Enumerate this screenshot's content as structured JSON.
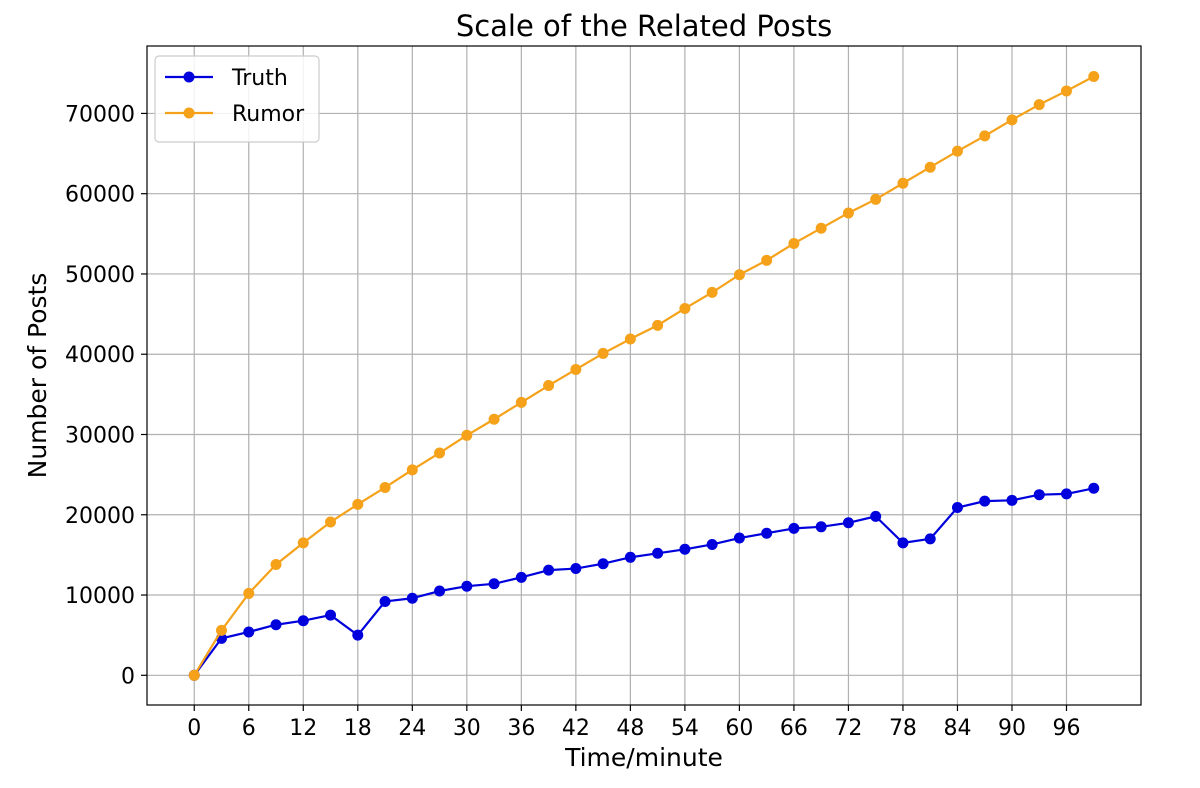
{
  "chart_data": {
    "type": "line",
    "title": "Scale of the Related Posts",
    "xlabel": "Time/minute",
    "ylabel": "Number of Posts",
    "xlim": [
      -5.2,
      104.2
    ],
    "ylim": [
      -3700,
      78400
    ],
    "xticks": [
      0,
      6,
      12,
      18,
      24,
      30,
      36,
      42,
      48,
      54,
      60,
      66,
      72,
      78,
      84,
      90,
      96
    ],
    "yticks": [
      0,
      10000,
      20000,
      30000,
      40000,
      50000,
      60000,
      70000
    ],
    "grid": true,
    "legend_position": "top-left",
    "x": [
      0,
      3,
      6,
      9,
      12,
      15,
      18,
      21,
      24,
      27,
      30,
      33,
      36,
      39,
      42,
      45,
      48,
      51,
      54,
      57,
      60,
      63,
      66,
      69,
      72,
      75,
      78,
      81,
      84,
      87,
      90,
      93,
      96,
      99
    ],
    "series": [
      {
        "name": "Truth",
        "color": "#0000dd",
        "values": [
          0,
          4600,
          5400,
          6300,
          6800,
          7500,
          5000,
          9200,
          9600,
          10500,
          11100,
          11400,
          12200,
          13100,
          13300,
          13900,
          14700,
          15200,
          15700,
          16300,
          17100,
          17700,
          18300,
          18500,
          19000,
          19800,
          16500,
          17000,
          20900,
          21700,
          21800,
          22500,
          22600,
          23300
        ]
      },
      {
        "name": "Rumor",
        "color": "#f5a21a",
        "values": [
          0,
          5600,
          10200,
          13800,
          16500,
          19100,
          21300,
          23400,
          25600,
          27700,
          29900,
          31900,
          34000,
          36100,
          38100,
          40100,
          41900,
          43600,
          45700,
          47700,
          49900,
          51700,
          53800,
          55700,
          57600,
          59300,
          61300,
          63300,
          65300,
          67200,
          69200,
          71100,
          72800,
          74600
        ]
      }
    ]
  }
}
